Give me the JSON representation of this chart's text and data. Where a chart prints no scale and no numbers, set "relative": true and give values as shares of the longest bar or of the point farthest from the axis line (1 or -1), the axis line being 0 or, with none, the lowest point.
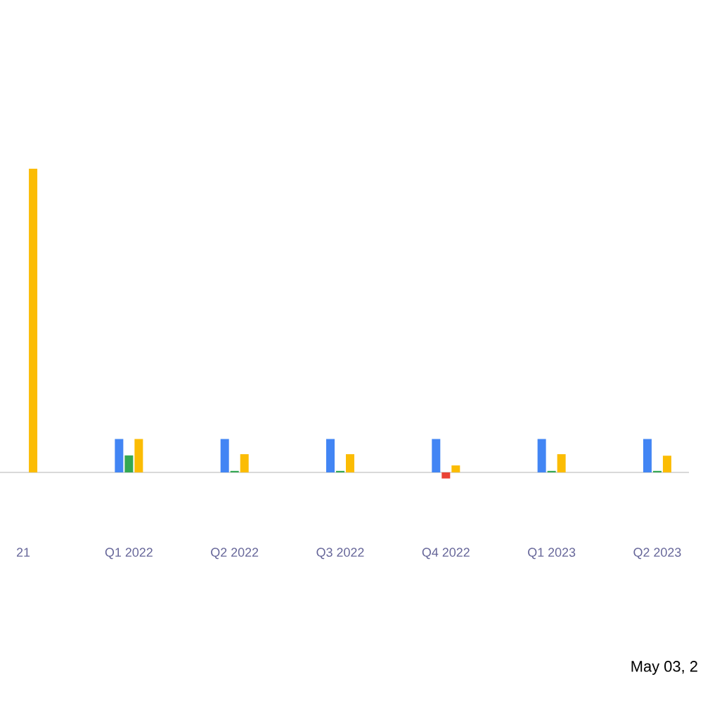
{
  "chart_data": {
    "type": "bar",
    "relative": true,
    "categories": [
      "21",
      "Q1 2022",
      "Q2 2022",
      "Q3 2022",
      "Q4 2022",
      "Q1 2023",
      "Q2 2023"
    ],
    "series": [
      {
        "color": "#4285f4",
        "values": [
          null,
          0.11,
          0.11,
          0.11,
          0.11,
          0.11,
          0.11
        ]
      },
      {
        "color": "#34a853",
        "colors": [
          "#34a853",
          "#34a853",
          "#34a853",
          "#34a853",
          "#ea4335",
          "#34a853",
          "#34a853"
        ],
        "values": [
          null,
          0.056,
          0.005,
          0.005,
          -0.02,
          0.005,
          0.005
        ]
      },
      {
        "color": "#fbbc04",
        "values": [
          1,
          0.11,
          0.06,
          0.06,
          0.023,
          0.06,
          0.055
        ]
      }
    ],
    "annotations": [
      "May 03, 2"
    ]
  }
}
